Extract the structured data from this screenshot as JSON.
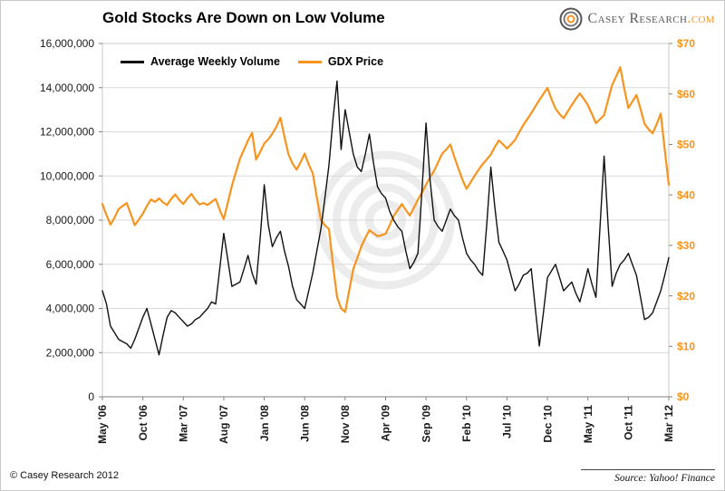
{
  "page": {
    "title": "Gold Stocks Are Down on Low Volume",
    "logo": {
      "name": "Casey Research",
      "suffix": ".com"
    },
    "footer_left": "© Casey Research 2012",
    "footer_right": "Source: Yahoo! Finance"
  },
  "colors": {
    "accent_orange": "#F7941E",
    "volume_line": "#111111",
    "grid": "#D9D9D9",
    "axis_text": "#1a1a1a",
    "watermark": "#ECECEC"
  },
  "chart_data": {
    "type": "line",
    "title": "Gold Stocks Are Down on Low Volume",
    "grid": "horizontal",
    "legend_position": "top-left-inside",
    "x_tick_labels": [
      "May '06",
      "Oct '06",
      "Mar '07",
      "Aug '07",
      "Jan '08",
      "Jun '08",
      "Nov '08",
      "Apr '09",
      "Sep '09",
      "Feb '10",
      "Jul '10",
      "Dec '10",
      "May '11",
      "Oct '11",
      "Mar '12"
    ],
    "left_axis": {
      "ticks": [
        "0",
        "2,000,000",
        "4,000,000",
        "6,000,000",
        "8,000,000",
        "10,000,000",
        "12,000,000",
        "14,000,000",
        "16,000,000"
      ],
      "range": [
        0,
        16000000
      ],
      "unit": "shares"
    },
    "right_axis": {
      "ticks": [
        "$0",
        "$10",
        "$20",
        "$30",
        "$40",
        "$50",
        "$60",
        "$70"
      ],
      "range": [
        0,
        70
      ],
      "unit": "USD"
    },
    "sampling": "values estimated from plot at half-month intervals, May 2006 - Mar 2012",
    "series": [
      {
        "name": "Average Weekly Volume",
        "axis": "left",
        "color": "#111111",
        "unit": "millions of shares",
        "values_millions": [
          4.8,
          4.2,
          3.2,
          2.9,
          2.6,
          2.5,
          2.4,
          2.2,
          2.6,
          3.1,
          3.6,
          4.0,
          3.3,
          2.6,
          1.9,
          2.8,
          3.6,
          3.9,
          3.8,
          3.6,
          3.4,
          3.2,
          3.3,
          3.5,
          3.6,
          3.8,
          4.0,
          4.3,
          4.2,
          5.8,
          7.4,
          6.2,
          5.0,
          5.1,
          5.2,
          5.8,
          6.4,
          5.6,
          5.1,
          7.2,
          9.6,
          7.8,
          6.8,
          7.2,
          7.5,
          6.6,
          5.9,
          5.0,
          4.4,
          4.2,
          4.0,
          4.8,
          5.6,
          6.6,
          7.6,
          9.0,
          10.5,
          12.6,
          14.3,
          11.2,
          13.0,
          12.0,
          11.0,
          10.4,
          10.2,
          11.0,
          11.9,
          10.6,
          9.5,
          9.2,
          9.0,
          8.4,
          8.0,
          7.7,
          7.5,
          6.6,
          5.8,
          6.1,
          6.5,
          9.4,
          12.4,
          9.8,
          8.0,
          7.7,
          7.5,
          8.0,
          8.5,
          8.2,
          8.0,
          7.2,
          6.5,
          6.2,
          6.0,
          5.7,
          5.5,
          7.8,
          10.4,
          8.6,
          7.0,
          6.6,
          6.2,
          5.5,
          4.8,
          5.1,
          5.5,
          5.6,
          5.8,
          4.0,
          2.3,
          3.8,
          5.4,
          5.7,
          6.0,
          5.4,
          4.8,
          5.0,
          5.2,
          4.7,
          4.3,
          5.0,
          5.8,
          5.1,
          4.5,
          7.7,
          10.9,
          7.8,
          5.0,
          5.6,
          6.0,
          6.2,
          6.5,
          6.0,
          5.5,
          4.5,
          3.5,
          3.6,
          3.8,
          4.3,
          4.8,
          5.5,
          6.3
        ]
      },
      {
        "name": "GDX Price",
        "axis": "right",
        "color": "#F7941E",
        "unit": "USD",
        "values": [
          38.2,
          36.0,
          34.1,
          35.5,
          37.2,
          37.8,
          38.4,
          36.2,
          34.0,
          35.1,
          36.3,
          37.8,
          39.1,
          38.6,
          39.3,
          38.5,
          38.0,
          39.2,
          40.1,
          39.0,
          38.2,
          39.3,
          40.2,
          39.0,
          38.1,
          38.4,
          38.0,
          38.6,
          39.2,
          37.0,
          35.2,
          38.5,
          41.8,
          44.5,
          47.2,
          49.0,
          50.8,
          52.3,
          47.0,
          48.5,
          50.2,
          51.0,
          52.1,
          53.5,
          55.3,
          51.5,
          48.0,
          46.2,
          45.0,
          46.5,
          48.2,
          46.0,
          44.3,
          39.5,
          35.0,
          34.0,
          33.2,
          26.0,
          19.8,
          17.5,
          16.8,
          21.0,
          25.3,
          27.5,
          29.8,
          31.5,
          33.0,
          32.4,
          31.8,
          32.0,
          32.3,
          34.0,
          35.8,
          37.0,
          38.2,
          37.0,
          35.9,
          37.5,
          39.1,
          40.5,
          42.0,
          43.5,
          44.8,
          46.5,
          48.2,
          49.0,
          50.0,
          47.5,
          45.2,
          43.0,
          41.2,
          42.5,
          43.8,
          45.0,
          46.1,
          47.0,
          48.0,
          49.5,
          50.8,
          50.0,
          49.2,
          50.0,
          50.9,
          52.4,
          53.8,
          55.0,
          56.2,
          57.5,
          58.8,
          60.0,
          61.2,
          59.0,
          57.1,
          56.0,
          55.2,
          56.5,
          57.8,
          59.0,
          60.1,
          59.0,
          57.8,
          56.0,
          54.2,
          55.0,
          55.8,
          58.8,
          61.8,
          63.5,
          65.3,
          61.0,
          57.2,
          58.5,
          59.8,
          57.0,
          54.1,
          53.0,
          52.2,
          54.0,
          56.1,
          49.0,
          42.0
        ]
      }
    ]
  }
}
